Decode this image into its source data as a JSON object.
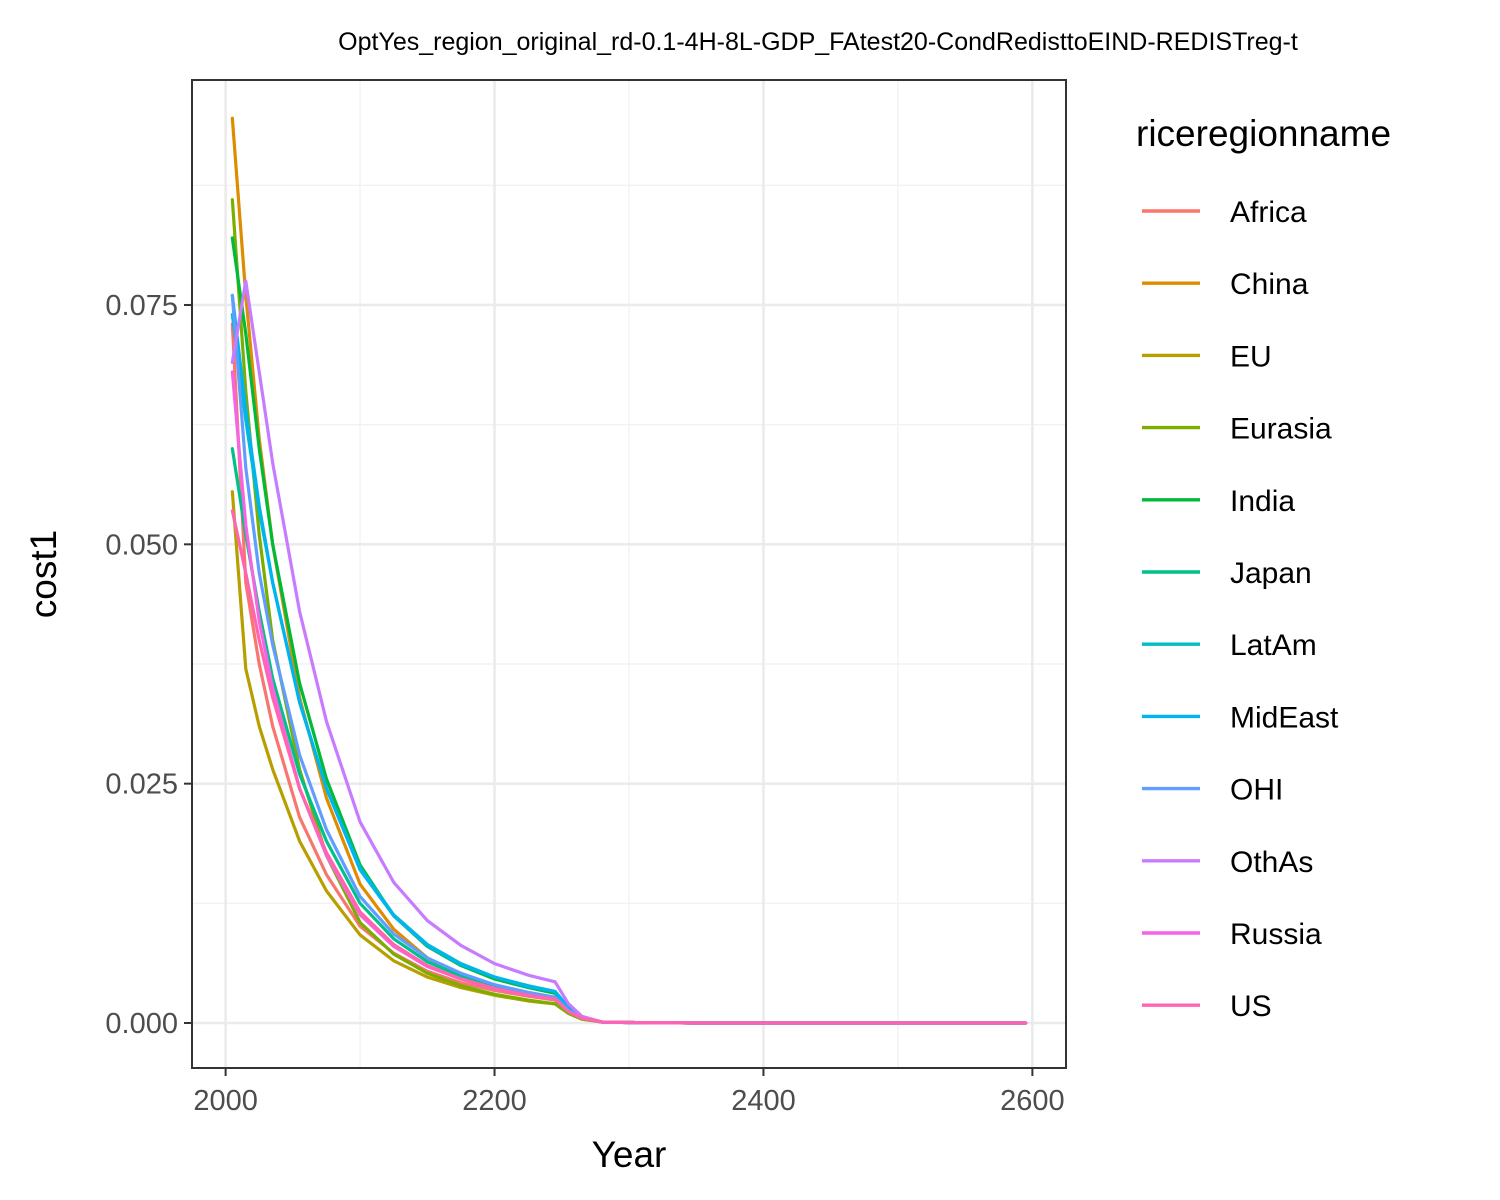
{
  "chart_data": {
    "type": "line",
    "title": "OptYes_region_original_rd-0.1-4H-8L-GDP_FAtest20-CondRedisttoEIND-REDISTreg-t",
    "xlabel": "Year",
    "ylabel": "cost1",
    "xlim": [
      1975,
      2625
    ],
    "ylim": [
      -0.0047,
      0.0985
    ],
    "x_ticks": [
      2000,
      2200,
      2400,
      2600
    ],
    "x_tick_labels": [
      "2000",
      "2200",
      "2400",
      "2600"
    ],
    "y_ticks": [
      0.0,
      0.025,
      0.05,
      0.075
    ],
    "y_tick_labels": [
      "0.000",
      "0.025",
      "0.050",
      "0.075"
    ],
    "grid": true,
    "legend": {
      "title": "riceregionname",
      "position": "right"
    },
    "series": [
      {
        "name": "Africa",
        "color": "#F8766D",
        "x": [
          2005,
          2015,
          2025,
          2035,
          2055,
          2075,
          2100,
          2125,
          2150,
          2175,
          2200,
          2225,
          2245,
          2255,
          2265,
          2280,
          2300,
          2350,
          2400,
          2500,
          2595
        ],
        "y": [
          0.073,
          0.046,
          0.0375,
          0.031,
          0.0215,
          0.0155,
          0.0101,
          0.0073,
          0.0054,
          0.0042,
          0.0034,
          0.0028,
          0.0024,
          0.0012,
          0.0005,
          0.0001,
          5e-05,
          0.0,
          0.0,
          0.0,
          0.0
        ]
      },
      {
        "name": "China",
        "color": "#DE8C00",
        "x": [
          2005,
          2015,
          2025,
          2035,
          2055,
          2075,
          2100,
          2125,
          2150,
          2175,
          2200,
          2225,
          2245,
          2255,
          2265,
          2280,
          2300,
          2350,
          2400,
          2500,
          2595
        ],
        "y": [
          0.0945,
          0.076,
          0.061,
          0.05,
          0.034,
          0.0235,
          0.0145,
          0.0098,
          0.0068,
          0.005,
          0.0038,
          0.003,
          0.0025,
          0.0013,
          0.0005,
          0.0001,
          5e-05,
          0.0,
          0.0,
          0.0,
          0.0
        ]
      },
      {
        "name": "EU",
        "color": "#B79F00",
        "x": [
          2005,
          2015,
          2025,
          2035,
          2055,
          2075,
          2100,
          2125,
          2150,
          2175,
          2200,
          2225,
          2245,
          2255,
          2265,
          2280,
          2300,
          2350,
          2400,
          2500,
          2595
        ],
        "y": [
          0.0555,
          0.037,
          0.031,
          0.0265,
          0.019,
          0.0138,
          0.0092,
          0.0065,
          0.0048,
          0.0037,
          0.0029,
          0.0023,
          0.002,
          0.001,
          0.0004,
          0.0001,
          5e-05,
          0.0,
          0.0,
          0.0,
          0.0
        ]
      },
      {
        "name": "Eurasia",
        "color": "#7CAE00",
        "x": [
          2005,
          2015,
          2025,
          2035,
          2055,
          2075,
          2100,
          2125,
          2150,
          2175,
          2200,
          2225,
          2245,
          2255,
          2265,
          2280,
          2300,
          2350,
          2400,
          2500,
          2595
        ],
        "y": [
          0.086,
          0.066,
          0.051,
          0.04,
          0.0265,
          0.0175,
          0.0105,
          0.0072,
          0.0052,
          0.0039,
          0.003,
          0.0024,
          0.002,
          0.001,
          0.0004,
          0.0001,
          5e-05,
          0.0,
          0.0,
          0.0,
          0.0
        ]
      },
      {
        "name": "India",
        "color": "#00BA38",
        "x": [
          2005,
          2015,
          2025,
          2035,
          2055,
          2075,
          2100,
          2125,
          2150,
          2175,
          2200,
          2225,
          2245,
          2255,
          2265,
          2280,
          2300,
          2350,
          2400,
          2500,
          2595
        ],
        "y": [
          0.082,
          0.072,
          0.06,
          0.05,
          0.0355,
          0.0255,
          0.0165,
          0.0112,
          0.008,
          0.006,
          0.0046,
          0.0037,
          0.0031,
          0.0015,
          0.0006,
          0.0001,
          5e-05,
          0.0,
          0.0,
          0.0,
          0.0
        ]
      },
      {
        "name": "Japan",
        "color": "#00C08B",
        "x": [
          2005,
          2015,
          2025,
          2035,
          2055,
          2075,
          2100,
          2125,
          2150,
          2175,
          2200,
          2225,
          2245,
          2255,
          2265,
          2280,
          2300,
          2350,
          2400,
          2500,
          2595
        ],
        "y": [
          0.06,
          0.051,
          0.043,
          0.036,
          0.026,
          0.019,
          0.0125,
          0.0088,
          0.0064,
          0.0049,
          0.0038,
          0.003,
          0.0026,
          0.0013,
          0.0005,
          0.0001,
          5e-05,
          0.0,
          0.0,
          0.0,
          0.0
        ]
      },
      {
        "name": "LatAm",
        "color": "#00BFC4",
        "x": [
          2005,
          2015,
          2025,
          2035,
          2055,
          2075,
          2100,
          2125,
          2150,
          2175,
          2200,
          2225,
          2245,
          2255,
          2265,
          2280,
          2300,
          2350,
          2400,
          2500,
          2595
        ],
        "y": [
          0.074,
          0.063,
          0.0535,
          0.046,
          0.0335,
          0.0245,
          0.0162,
          0.0113,
          0.0082,
          0.0062,
          0.0048,
          0.0039,
          0.0033,
          0.0016,
          0.0006,
          0.0001,
          5e-05,
          0.0,
          0.0,
          0.0,
          0.0
        ]
      },
      {
        "name": "MidEast",
        "color": "#00B4F0",
        "x": [
          2005,
          2015,
          2025,
          2035,
          2055,
          2075,
          2100,
          2125,
          2150,
          2175,
          2200,
          2225,
          2245,
          2255,
          2265,
          2280,
          2300,
          2350,
          2400,
          2500,
          2595
        ],
        "y": [
          0.076,
          0.064,
          0.054,
          0.046,
          0.0335,
          0.0245,
          0.016,
          0.0112,
          0.0081,
          0.0061,
          0.0048,
          0.0038,
          0.0033,
          0.0016,
          0.0006,
          0.0001,
          5e-05,
          0.0,
          0.0,
          0.0,
          0.0
        ]
      },
      {
        "name": "OHI",
        "color": "#619CFF",
        "x": [
          2005,
          2015,
          2025,
          2035,
          2055,
          2075,
          2100,
          2125,
          2150,
          2175,
          2200,
          2225,
          2245,
          2255,
          2265,
          2280,
          2300,
          2350,
          2400,
          2500,
          2595
        ],
        "y": [
          0.076,
          0.058,
          0.047,
          0.0395,
          0.028,
          0.0202,
          0.0132,
          0.0093,
          0.0068,
          0.0052,
          0.004,
          0.0032,
          0.0027,
          0.0013,
          0.0005,
          0.0001,
          5e-05,
          0.0,
          0.0,
          0.0,
          0.0
        ]
      },
      {
        "name": "OthAs",
        "color": "#C77CFF",
        "x": [
          2005,
          2015,
          2025,
          2035,
          2055,
          2075,
          2100,
          2125,
          2150,
          2175,
          2200,
          2225,
          2245,
          2255,
          2265,
          2280,
          2300,
          2350,
          2400,
          2500,
          2595
        ],
        "y": [
          0.069,
          0.0775,
          0.068,
          0.0585,
          0.043,
          0.0315,
          0.021,
          0.0147,
          0.0107,
          0.0081,
          0.0062,
          0.005,
          0.0043,
          0.002,
          0.0007,
          0.0001,
          5e-05,
          0.0,
          0.0,
          0.0,
          0.0
        ]
      },
      {
        "name": "Russia",
        "color": "#F564E3",
        "x": [
          2005,
          2015,
          2025,
          2035,
          2055,
          2075,
          2100,
          2125,
          2150,
          2175,
          2200,
          2225,
          2245,
          2255,
          2265,
          2280,
          2300,
          2350,
          2400,
          2500,
          2595
        ],
        "y": [
          0.068,
          0.052,
          0.042,
          0.035,
          0.0245,
          0.0175,
          0.0113,
          0.008,
          0.0059,
          0.0046,
          0.0036,
          0.0029,
          0.0025,
          0.0012,
          0.0005,
          0.0001,
          5e-05,
          0.0,
          0.0,
          0.0,
          0.0
        ]
      },
      {
        "name": "US",
        "color": "#FF64B0",
        "x": [
          2005,
          2015,
          2025,
          2035,
          2055,
          2075,
          2100,
          2125,
          2150,
          2175,
          2200,
          2225,
          2245,
          2255,
          2265,
          2280,
          2300,
          2350,
          2400,
          2500,
          2595
        ],
        "y": [
          0.0535,
          0.047,
          0.04,
          0.034,
          0.0245,
          0.0178,
          0.0116,
          0.0082,
          0.006,
          0.0046,
          0.0036,
          0.0029,
          0.0025,
          0.0012,
          0.0005,
          0.0001,
          5e-05,
          0.0,
          0.0,
          0.0,
          0.0
        ]
      }
    ]
  }
}
